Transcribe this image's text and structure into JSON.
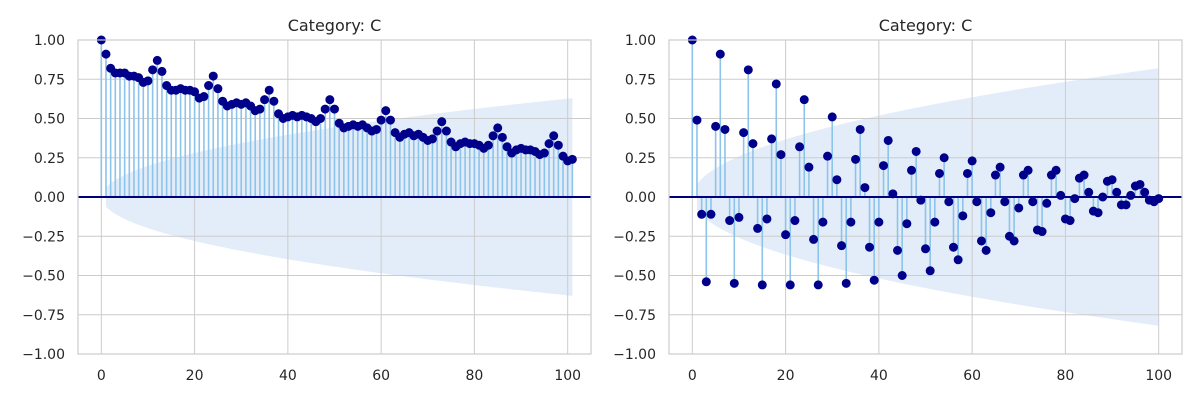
{
  "chart_data": [
    {
      "type": "stem",
      "title": "Category: C",
      "xlabel": "",
      "ylabel": "",
      "xlim": [
        -5,
        105
      ],
      "ylim": [
        -1.0,
        1.0
      ],
      "x_ticks": [
        "0",
        "20",
        "40",
        "60",
        "80",
        "100"
      ],
      "y_ticks": [
        "1.00",
        "0.75",
        "0.50",
        "0.25",
        "0.00",
        "−0.25",
        "−0.50",
        "−0.75",
        "−1.00"
      ],
      "grid": true,
      "confidence_band_halfwidth_at_lag_100": 0.63,
      "values": [
        1.0,
        0.91,
        0.82,
        0.79,
        0.79,
        0.79,
        0.77,
        0.77,
        0.76,
        0.73,
        0.74,
        0.81,
        0.87,
        0.8,
        0.71,
        0.68,
        0.68,
        0.69,
        0.68,
        0.68,
        0.67,
        0.63,
        0.64,
        0.71,
        0.77,
        0.69,
        0.61,
        0.58,
        0.59,
        0.6,
        0.59,
        0.6,
        0.58,
        0.55,
        0.56,
        0.62,
        0.68,
        0.61,
        0.53,
        0.5,
        0.51,
        0.52,
        0.51,
        0.52,
        0.51,
        0.5,
        0.48,
        0.5,
        0.56,
        0.62,
        0.56,
        0.47,
        0.44,
        0.45,
        0.46,
        0.45,
        0.46,
        0.44,
        0.42,
        0.43,
        0.49,
        0.55,
        0.49,
        0.41,
        0.38,
        0.4,
        0.41,
        0.39,
        0.4,
        0.38,
        0.36,
        0.37,
        0.42,
        0.48,
        0.42,
        0.35,
        0.32,
        0.34,
        0.35,
        0.34,
        0.34,
        0.33,
        0.31,
        0.33,
        0.39,
        0.44,
        0.38,
        0.32,
        0.28,
        0.3,
        0.31,
        0.3,
        0.3,
        0.29,
        0.27,
        0.28,
        0.34,
        0.39,
        0.33,
        0.26,
        0.23,
        0.24
      ]
    },
    {
      "type": "stem",
      "title": "Category: C",
      "xlabel": "",
      "ylabel": "",
      "xlim": [
        -5,
        105
      ],
      "ylim": [
        -1.0,
        1.0
      ],
      "x_ticks": [
        "0",
        "20",
        "40",
        "60",
        "80",
        "100"
      ],
      "y_ticks": [
        "1.00",
        "0.75",
        "0.50",
        "0.25",
        "0.00",
        "−0.25",
        "−0.50",
        "−0.75",
        "−1.00"
      ],
      "grid": true,
      "confidence_band_halfwidth_at_lag_100": 0.82,
      "values": [
        1.0,
        0.49,
        -0.11,
        -0.54,
        -0.11,
        0.45,
        0.91,
        0.43,
        -0.15,
        -0.55,
        -0.13,
        0.41,
        0.81,
        0.34,
        -0.2,
        -0.56,
        -0.14,
        0.37,
        0.72,
        0.27,
        -0.24,
        -0.56,
        -0.15,
        0.32,
        0.62,
        0.19,
        -0.27,
        -0.56,
        -0.16,
        0.26,
        0.51,
        0.11,
        -0.31,
        -0.55,
        -0.16,
        0.24,
        0.43,
        0.06,
        -0.32,
        -0.53,
        -0.16,
        0.2,
        0.36,
        0.02,
        -0.34,
        -0.5,
        -0.17,
        0.17,
        0.29,
        -0.02,
        -0.33,
        -0.47,
        -0.16,
        0.15,
        0.25,
        -0.03,
        -0.32,
        -0.4,
        -0.12,
        0.15,
        0.23,
        -0.03,
        -0.28,
        -0.34,
        -0.1,
        0.14,
        0.19,
        -0.03,
        -0.25,
        -0.28,
        -0.07,
        0.14,
        0.17,
        -0.03,
        -0.21,
        -0.22,
        -0.04,
        0.14,
        0.17,
        0.01,
        -0.14,
        -0.15,
        -0.01,
        0.12,
        0.14,
        0.03,
        -0.09,
        -0.1,
        0.0,
        0.1,
        0.11,
        0.03,
        -0.05,
        -0.05,
        0.01,
        0.07,
        0.08,
        0.03,
        -0.02,
        -0.03,
        -0.01
      ]
    }
  ]
}
